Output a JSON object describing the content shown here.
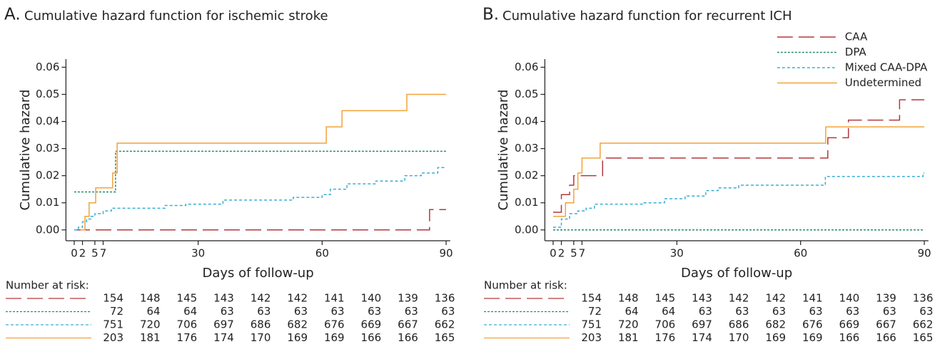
{
  "chart_data": [
    {
      "type": "step",
      "panel_label": "A.",
      "title": "Cumulative hazard function for ischemic stroke",
      "xlabel": "Days of follow-up",
      "ylabel": "Cumulative hazard",
      "xlim": [
        -2,
        91
      ],
      "ylim": [
        -0.004,
        0.063
      ],
      "xticks": [
        0,
        2,
        5,
        7,
        30,
        60,
        90
      ],
      "yticks": [
        {
          "value": 0,
          "label": "0.00"
        },
        0.01,
        0.02,
        0.03,
        0.04,
        0.05,
        0.06
      ],
      "risk_label": "Number at risk:",
      "series": [
        {
          "color": "#b5373f",
          "linestyle": "longdash",
          "x": [
            0,
            86,
            90
          ],
          "values": [
            0,
            0.0075,
            0.0075
          ],
          "at_risk": [
            154,
            148,
            145,
            143,
            142,
            142,
            141,
            140,
            139,
            136
          ]
        },
        {
          "color": "#2a8a6e",
          "linestyle": "dotted",
          "x": [
            0,
            10,
            90
          ],
          "values": [
            0.014,
            0.029,
            0.029
          ],
          "at_risk": [
            72,
            64,
            64,
            63,
            63,
            63,
            63,
            63,
            63,
            63
          ]
        },
        {
          "color": "#3aaed6",
          "linestyle": "dashed",
          "x": [
            0,
            1,
            2,
            3,
            4,
            5,
            7,
            9,
            22,
            27,
            36,
            53,
            60,
            62,
            66,
            73,
            80,
            84,
            88,
            90
          ],
          "values": [
            0,
            0.001,
            0.003,
            0.004,
            0.005,
            0.006,
            0.007,
            0.008,
            0.009,
            0.0095,
            0.011,
            0.012,
            0.013,
            0.015,
            0.017,
            0.018,
            0.02,
            0.021,
            0.023,
            0.023
          ],
          "at_risk": [
            751,
            720,
            706,
            697,
            686,
            682,
            676,
            669,
            667,
            662
          ]
        },
        {
          "color": "#f2a33a",
          "linestyle": "solid",
          "x": [
            1.5,
            2.6,
            3.6,
            5.2,
            9.3,
            10.4,
            61,
            64.8,
            80.5,
            90
          ],
          "values": [
            0,
            0.005,
            0.01,
            0.0155,
            0.021,
            0.032,
            0.038,
            0.044,
            0.05,
            0.05
          ],
          "at_risk": [
            203,
            181,
            176,
            174,
            170,
            169,
            169,
            166,
            166,
            165
          ]
        }
      ]
    },
    {
      "type": "step",
      "panel_label": "B.",
      "title": "Cumulative hazard function for recurrent ICH",
      "xlabel": "Days of follow-up",
      "ylabel": "Cumulative hazard",
      "xlim": [
        -2,
        91
      ],
      "ylim": [
        -0.004,
        0.063
      ],
      "xticks": [
        0,
        2,
        5,
        7,
        30,
        60,
        90
      ],
      "yticks": [
        {
          "value": 0,
          "label": "0.00"
        },
        0.01,
        0.02,
        0.03,
        0.04,
        0.05,
        0.06
      ],
      "legend": "upper right",
      "risk_label": "Number at risk:",
      "series": [
        {
          "name": "CAA",
          "color": "#b5373f",
          "linestyle": "longdash",
          "x": [
            0,
            2,
            4,
            5,
            12,
            66.6,
            71.6,
            84,
            90
          ],
          "values": [
            0.0065,
            0.013,
            0.0165,
            0.02,
            0.0265,
            0.034,
            0.0405,
            0.048,
            0.048
          ],
          "at_risk": [
            154,
            148,
            145,
            143,
            142,
            142,
            141,
            140,
            139,
            136
          ]
        },
        {
          "name": "DPA",
          "color": "#2a8a6e",
          "linestyle": "dotted",
          "x": [
            0,
            90
          ],
          "values": [
            0,
            0
          ],
          "at_risk": [
            72,
            64,
            64,
            63,
            63,
            63,
            63,
            63,
            63,
            63
          ]
        },
        {
          "name": "Mixed CAA-DPA",
          "color": "#3aaed6",
          "linestyle": "dashed",
          "x": [
            0,
            2,
            4,
            6,
            8,
            10,
            22,
            27,
            32,
            37,
            40,
            45,
            66,
            89.7,
            90
          ],
          "values": [
            0.001,
            0.004,
            0.006,
            0.007,
            0.008,
            0.0095,
            0.01,
            0.0115,
            0.0125,
            0.0145,
            0.0155,
            0.0165,
            0.0197,
            0.021,
            0.021
          ],
          "at_risk": [
            751,
            720,
            706,
            697,
            686,
            682,
            676,
            669,
            667,
            662
          ]
        },
        {
          "name": "Undetermined",
          "color": "#f2a33a",
          "linestyle": "solid",
          "x": [
            0,
            3,
            5,
            6,
            7,
            11.4,
            66.1,
            90
          ],
          "values": [
            0.005,
            0.01,
            0.015,
            0.021,
            0.0265,
            0.032,
            0.038,
            0.038
          ],
          "at_risk": [
            203,
            181,
            176,
            174,
            170,
            169,
            169,
            166,
            166,
            165
          ]
        }
      ]
    }
  ]
}
